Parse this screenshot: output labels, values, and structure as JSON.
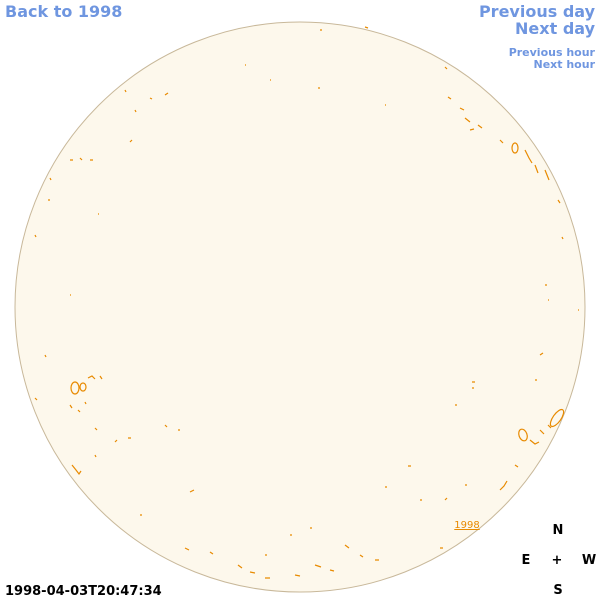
{
  "nav": {
    "back": "Back to 1998",
    "previous_day": "Previous day",
    "next_day": "Next day",
    "previous_hour": "Previous hour",
    "next_hour": "Next hour"
  },
  "disk_label": "1998",
  "compass": {
    "north": "N",
    "east": "E",
    "center": "+",
    "west": "W",
    "south": "S"
  },
  "timestamp": "1998-04-03T20:47:34"
}
